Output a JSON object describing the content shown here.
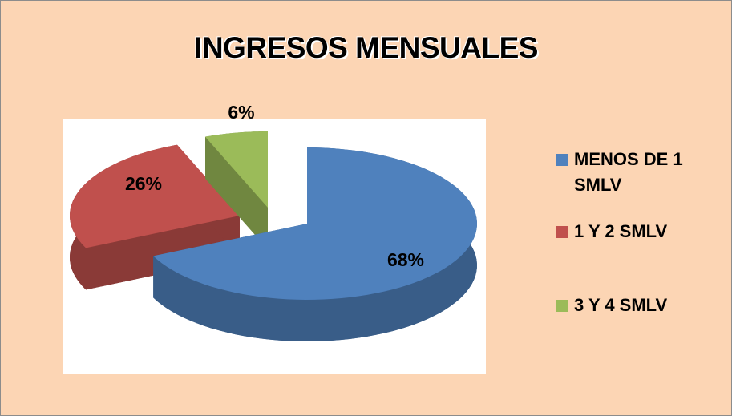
{
  "chart_data": {
    "type": "pie",
    "title": "INGRESOS MENSUALES",
    "categories": [
      "MENOS DE 1 SMLV",
      "1 Y 2 SMLV",
      "3 Y 4 SMLV"
    ],
    "values": [
      68,
      26,
      6
    ],
    "value_labels": [
      "68%",
      "26%",
      "6%"
    ],
    "colors": [
      "#4f81bd",
      "#c0504d",
      "#9bbb59"
    ]
  }
}
